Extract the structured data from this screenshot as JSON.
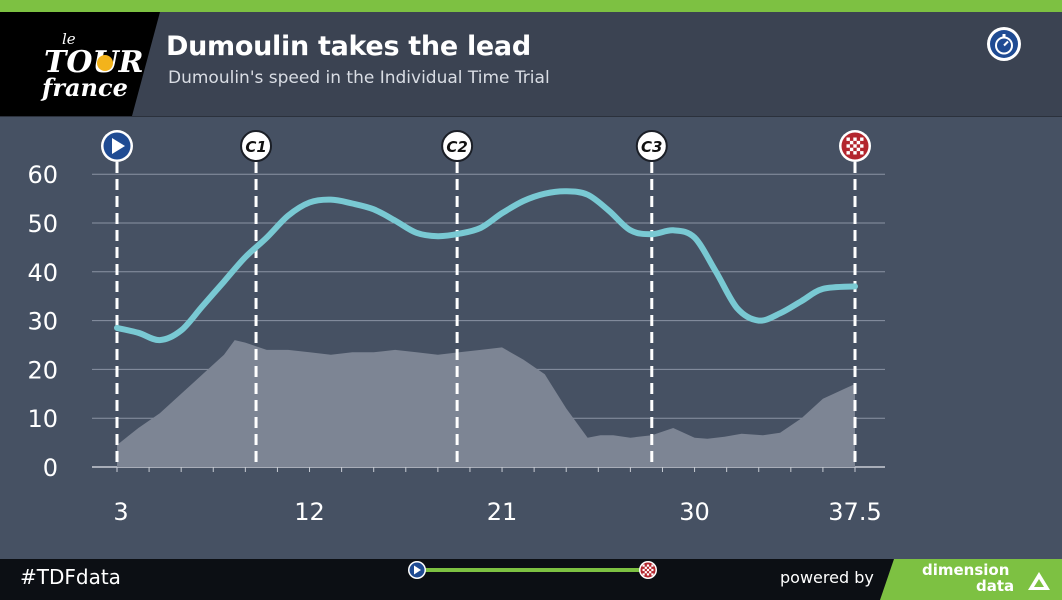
{
  "header": {
    "logo": {
      "name": "tour-de-france-logo",
      "lettering": "le Tour de France"
    },
    "title": "Dumoulin takes the lead",
    "subtitle": "Dumoulin's speed in the Individual Time Trial",
    "icon": "stopwatch-icon"
  },
  "footer": {
    "hashtag": "#TDFdata",
    "powered_by": "powered by",
    "brand_line1": "dimension",
    "brand_line2": "data",
    "progress": {
      "start_icon": "start-flag-icon",
      "end_icon": "finish-flag-icon",
      "fraction": 1.0
    }
  },
  "colors": {
    "speed_line": "#79c9d3",
    "elevation_fill": "#7d8594",
    "accent_green": "#7dc142",
    "header_bg": "#3b4352",
    "plot_bg": "#465163"
  },
  "chart_data": {
    "type": "line",
    "title": "Dumoulin takes the lead",
    "subtitle": "Dumoulin's speed in the Individual Time Trial",
    "xlabel": "",
    "ylabel": "",
    "xlim": [
      3,
      37.5
    ],
    "ylim": [
      0,
      65
    ],
    "x_ticks": [
      3,
      12,
      21,
      30,
      37.5
    ],
    "x_tick_labels": [
      "3",
      "12",
      "21",
      "30",
      "37.5"
    ],
    "y_ticks": [
      0,
      10,
      20,
      30,
      40,
      50,
      60
    ],
    "y_tick_labels": [
      "0",
      "10",
      "20",
      "30",
      "40",
      "50",
      "60"
    ],
    "grid": true,
    "series": [
      {
        "role": "speed",
        "x": [
          3.0,
          4.0,
          5.0,
          6.0,
          7.0,
          8.0,
          9.0,
          10.0,
          11.0,
          12.0,
          13.0,
          14.0,
          15.0,
          16.0,
          17.0,
          18.0,
          19.0,
          20.0,
          21.0,
          22.0,
          23.0,
          24.0,
          25.0,
          26.0,
          27.0,
          28.0,
          29.0,
          30.0,
          31.0,
          32.0,
          33.0,
          34.0,
          35.0,
          36.0,
          37.5
        ],
        "values": [
          28.5,
          27.5,
          26.0,
          28.0,
          33.0,
          38.0,
          43.0,
          47.0,
          51.5,
          54.2,
          54.8,
          54.0,
          52.8,
          50.5,
          48.0,
          47.3,
          47.8,
          49.0,
          52.0,
          54.5,
          56.0,
          56.5,
          55.8,
          52.5,
          48.5,
          47.7,
          48.5,
          47.0,
          40.0,
          32.5,
          30.0,
          31.5,
          34.0,
          36.5,
          37.0
        ]
      },
      {
        "role": "elevation",
        "x": [
          3.0,
          4.0,
          5.0,
          6.0,
          7.0,
          8.0,
          8.5,
          9.0,
          10.0,
          11.0,
          12.0,
          13.0,
          14.0,
          15.0,
          16.0,
          17.0,
          18.0,
          19.0,
          20.0,
          21.0,
          22.0,
          23.0,
          24.0,
          25.0,
          25.6,
          26.2,
          27.0,
          28.0,
          29.0,
          30.0,
          30.6,
          31.4,
          32.2,
          33.2,
          34.0,
          35.0,
          36.0,
          37.0,
          37.5
        ],
        "values": [
          4.5,
          8.0,
          11.0,
          15.0,
          19.0,
          23.0,
          26.0,
          25.5,
          24.0,
          24.0,
          23.5,
          23.0,
          23.5,
          23.5,
          24.0,
          23.5,
          23.0,
          23.5,
          24.0,
          24.5,
          22.0,
          19.0,
          12.0,
          6.0,
          6.5,
          6.5,
          6.0,
          6.5,
          8.0,
          6.0,
          5.8,
          6.2,
          6.8,
          6.5,
          7.0,
          10.0,
          14.0,
          16.0,
          17.0
        ]
      }
    ],
    "checkpoints": [
      {
        "x": 3.0,
        "label": "",
        "marker": "start-flag-icon"
      },
      {
        "x": 9.5,
        "label": "C1",
        "marker": "checkpoint-badge"
      },
      {
        "x": 18.9,
        "label": "C2",
        "marker": "checkpoint-badge"
      },
      {
        "x": 28.0,
        "label": "C3",
        "marker": "checkpoint-badge"
      },
      {
        "x": 37.5,
        "label": "",
        "marker": "finish-flag-icon"
      }
    ]
  }
}
